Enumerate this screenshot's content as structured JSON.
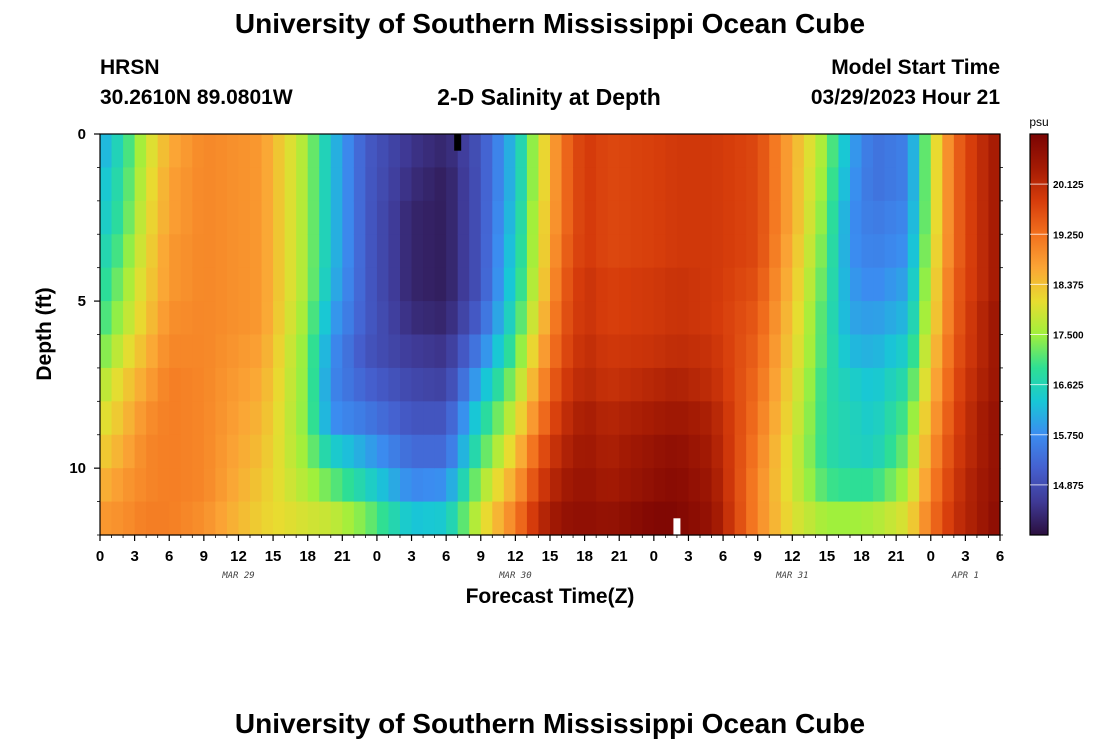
{
  "page": {
    "title": "University of Southern Mississippi Ocean Cube",
    "footer_title": "University of Southern Mississippi Ocean Cube",
    "station": "HRSN",
    "coords": "30.2610N  89.0801W",
    "subtitle": "2-D Salinity at Depth",
    "model_start_label": "Model Start Time",
    "model_start_value": "03/29/2023 Hour 21"
  },
  "chart_data": {
    "type": "heatmap",
    "title": "2-D Salinity at Depth",
    "xlabel": "Forecast Time(Z)",
    "ylabel": "Depth (ft)",
    "x_unit": "hours since 2023-03-29 00Z",
    "xlim": [
      0,
      78
    ],
    "ylim": [
      0,
      12
    ],
    "x_ticks": [
      {
        "x": 0,
        "label": "0"
      },
      {
        "x": 3,
        "label": "3"
      },
      {
        "x": 6,
        "label": "6"
      },
      {
        "x": 9,
        "label": "9"
      },
      {
        "x": 12,
        "label": "12"
      },
      {
        "x": 15,
        "label": "15"
      },
      {
        "x": 18,
        "label": "18"
      },
      {
        "x": 21,
        "label": "21"
      },
      {
        "x": 24,
        "label": "0"
      },
      {
        "x": 27,
        "label": "3"
      },
      {
        "x": 30,
        "label": "6"
      },
      {
        "x": 33,
        "label": "9"
      },
      {
        "x": 36,
        "label": "12"
      },
      {
        "x": 39,
        "label": "15"
      },
      {
        "x": 42,
        "label": "18"
      },
      {
        "x": 45,
        "label": "21"
      },
      {
        "x": 48,
        "label": "0"
      },
      {
        "x": 51,
        "label": "3"
      },
      {
        "x": 54,
        "label": "6"
      },
      {
        "x": 57,
        "label": "9"
      },
      {
        "x": 60,
        "label": "12"
      },
      {
        "x": 63,
        "label": "15"
      },
      {
        "x": 66,
        "label": "18"
      },
      {
        "x": 69,
        "label": "21"
      },
      {
        "x": 72,
        "label": "0"
      },
      {
        "x": 75,
        "label": "3"
      },
      {
        "x": 78,
        "label": "6"
      }
    ],
    "day_labels": [
      {
        "x": 12,
        "label": "MAR 29"
      },
      {
        "x": 36,
        "label": "MAR 30"
      },
      {
        "x": 60,
        "label": "MAR 31"
      },
      {
        "x": 75,
        "label": "APR 1"
      }
    ],
    "y_ticks": [
      {
        "y": 0,
        "label": "0"
      },
      {
        "y": 5,
        "label": "5"
      },
      {
        "y": 10,
        "label": "10"
      }
    ],
    "colorbar": {
      "unit": "psu",
      "min": 14.0,
      "max": 21.0,
      "ticks": [
        "14.875",
        "15.750",
        "16.625",
        "17.500",
        "18.375",
        "19.250",
        "20.125"
      ],
      "colors": [
        "#2b0f3e",
        "#3f3a96",
        "#4560cf",
        "#3b8cf0",
        "#18c7d6",
        "#2edf94",
        "#a0f03c",
        "#e8dc30",
        "#fba535",
        "#f2701e",
        "#d63c0b",
        "#a31a04",
        "#7a0403"
      ]
    },
    "markers": [
      {
        "type": "min",
        "x": 31,
        "y_from": 0,
        "y_to": 0.5,
        "color": "#000000"
      },
      {
        "type": "max",
        "x": 50,
        "y_from": 11.5,
        "y_to": 12,
        "color": "#ffffff"
      }
    ],
    "y_rows": [
      0,
      1,
      2,
      3,
      4,
      5,
      6,
      7,
      8,
      9,
      10,
      11,
      12
    ],
    "time_keyframes": [
      0,
      2,
      4,
      6,
      9,
      14,
      18,
      20,
      23,
      27,
      30,
      33,
      36,
      38,
      40,
      42,
      44,
      48,
      50,
      53,
      57,
      60,
      63,
      65,
      67,
      70,
      72,
      74,
      76,
      78
    ],
    "salinity": [
      [
        16.0,
        16.2,
        16.3,
        16.5,
        16.7,
        16.9,
        17.2,
        17.6,
        17.9,
        18.2,
        18.5,
        18.8,
        19.0
      ],
      [
        16.8,
        16.9,
        17.0,
        17.2,
        17.4,
        17.6,
        17.9,
        18.2,
        18.4,
        18.6,
        18.8,
        18.9,
        19.0
      ],
      [
        17.8,
        17.9,
        18.0,
        18.1,
        18.2,
        18.3,
        18.5,
        18.7,
        18.9,
        19.0,
        19.0,
        19.1,
        19.1
      ],
      [
        18.6,
        18.7,
        18.7,
        18.8,
        18.8,
        18.9,
        19.0,
        19.1,
        19.1,
        19.1,
        19.1,
        19.1,
        19.1
      ],
      [
        19.0,
        19.0,
        19.0,
        19.0,
        19.0,
        19.0,
        19.0,
        19.0,
        19.0,
        19.0,
        19.0,
        18.9,
        18.8
      ],
      [
        18.8,
        18.8,
        18.8,
        18.8,
        18.8,
        18.8,
        18.7,
        18.6,
        18.5,
        18.4,
        18.3,
        18.2,
        18.1
      ],
      [
        17.5,
        17.5,
        17.5,
        17.5,
        17.5,
        17.4,
        17.3,
        17.3,
        17.3,
        17.4,
        17.6,
        17.9,
        18.2
      ],
      [
        16.3,
        16.3,
        16.3,
        16.3,
        16.2,
        16.0,
        15.8,
        15.7,
        15.8,
        16.5,
        17.2,
        17.8,
        18.3
      ],
      [
        15.1,
        15.1,
        15.1,
        15.1,
        15.1,
        15.1,
        15.0,
        15.2,
        15.5,
        16.0,
        16.6,
        17.3,
        17.9
      ],
      [
        14.5,
        14.4,
        14.3,
        14.3,
        14.3,
        14.4,
        14.6,
        14.8,
        15.0,
        15.3,
        15.7,
        16.3,
        17.0
      ],
      [
        14.3,
        14.2,
        14.2,
        14.2,
        14.2,
        14.3,
        14.5,
        14.7,
        15.0,
        15.3,
        15.8,
        16.4,
        17.0
      ],
      [
        15.0,
        15.0,
        15.0,
        15.0,
        15.0,
        15.2,
        15.6,
        16.1,
        16.6,
        17.0,
        17.5,
        17.9,
        18.3
      ],
      [
        16.3,
        16.3,
        16.4,
        16.5,
        16.6,
        16.8,
        17.1,
        17.5,
        17.9,
        18.3,
        18.7,
        19.1,
        19.6
      ],
      [
        17.8,
        17.8,
        17.9,
        17.9,
        18.0,
        18.2,
        18.5,
        18.8,
        19.1,
        19.5,
        19.8,
        20.1,
        20.4
      ],
      [
        19.2,
        19.2,
        19.2,
        19.3,
        19.4,
        19.5,
        19.6,
        19.8,
        20.0,
        20.2,
        20.4,
        20.6,
        20.8
      ],
      [
        19.9,
        19.9,
        19.9,
        19.9,
        20.0,
        20.0,
        20.1,
        20.2,
        20.4,
        20.5,
        20.6,
        20.7,
        20.9
      ],
      [
        19.7,
        19.7,
        19.7,
        19.7,
        19.8,
        19.8,
        19.9,
        20.0,
        20.2,
        20.3,
        20.4,
        20.6,
        20.8
      ],
      [
        19.8,
        19.8,
        19.8,
        19.8,
        19.9,
        19.9,
        20.0,
        20.2,
        20.4,
        20.6,
        20.7,
        20.9,
        21.0
      ],
      [
        19.9,
        19.9,
        19.9,
        19.9,
        20.0,
        20.0,
        20.1,
        20.3,
        20.5,
        20.7,
        20.8,
        20.9,
        21.0
      ],
      [
        19.9,
        19.9,
        19.9,
        19.9,
        19.9,
        19.9,
        20.0,
        20.1,
        20.3,
        20.4,
        20.5,
        20.6,
        20.7
      ],
      [
        19.7,
        19.7,
        19.7,
        19.7,
        19.6,
        19.5,
        19.4,
        19.3,
        19.2,
        19.1,
        19.0,
        19.0,
        19.1
      ],
      [
        18.6,
        18.6,
        18.6,
        18.5,
        18.4,
        18.3,
        18.2,
        18.1,
        18.0,
        17.9,
        17.9,
        18.0,
        18.3
      ],
      [
        17.4,
        17.3,
        17.2,
        17.1,
        17.0,
        16.9,
        16.9,
        16.8,
        16.8,
        16.8,
        17.0,
        17.5,
        18.2
      ],
      [
        16.0,
        15.9,
        15.8,
        15.8,
        15.9,
        16.0,
        16.2,
        16.5,
        16.6,
        16.6,
        16.9,
        17.5,
        18.2
      ],
      [
        15.4,
        15.4,
        15.5,
        15.6,
        15.7,
        15.9,
        16.1,
        16.3,
        16.4,
        16.5,
        16.9,
        17.6,
        18.3
      ],
      [
        15.6,
        15.6,
        15.7,
        15.8,
        16.0,
        16.2,
        16.5,
        16.8,
        17.1,
        17.3,
        17.6,
        18.0,
        18.5
      ],
      [
        17.7,
        17.7,
        17.7,
        17.8,
        17.9,
        18.0,
        18.2,
        18.4,
        18.6,
        18.8,
        19.0,
        19.2,
        19.4
      ],
      [
        19.3,
        19.3,
        19.3,
        19.3,
        19.4,
        19.4,
        19.5,
        19.6,
        19.7,
        19.8,
        19.9,
        20.0,
        20.1
      ],
      [
        20.0,
        20.0,
        20.0,
        20.0,
        20.0,
        20.1,
        20.1,
        20.2,
        20.3,
        20.3,
        20.4,
        20.4,
        20.5
      ],
      [
        20.5,
        20.5,
        20.5,
        20.5,
        20.5,
        20.6,
        20.6,
        20.6,
        20.7,
        20.7,
        20.7,
        20.8,
        20.8
      ]
    ]
  }
}
